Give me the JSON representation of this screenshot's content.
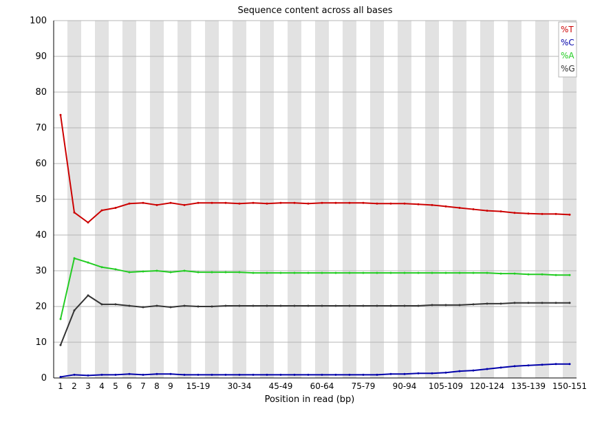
{
  "chart_data": {
    "type": "line",
    "title": "Sequence content across all bases",
    "xlabel": "Position in read (bp)",
    "ylabel": "",
    "ylim": [
      0,
      100
    ],
    "yticks": [
      0,
      10,
      20,
      30,
      40,
      50,
      60,
      70,
      80,
      90,
      100
    ],
    "categories": [
      "1",
      "2",
      "3",
      "4",
      "5",
      "6",
      "7",
      "8",
      "9",
      "10-14",
      "15-19",
      "20-24",
      "25-29",
      "30-34",
      "35-39",
      "40-44",
      "45-49",
      "50-54",
      "55-59",
      "60-64",
      "65-69",
      "70-74",
      "75-79",
      "80-84",
      "85-89",
      "90-94",
      "95-99",
      "100-104",
      "105-109",
      "110-114",
      "115-119",
      "120-124",
      "125-129",
      "130-134",
      "135-139",
      "140-144",
      "145-149",
      "150-151"
    ],
    "tick_labels": [
      "1",
      "2",
      "3",
      "4",
      "5",
      "6",
      "7",
      "8",
      "9",
      "",
      "15-19",
      "",
      "",
      "30-34",
      "",
      "",
      "45-49",
      "",
      "",
      "60-64",
      "",
      "",
      "75-79",
      "",
      "",
      "90-94",
      "",
      "",
      "105-109",
      "",
      "",
      "120-124",
      "",
      "",
      "135-139",
      "",
      "",
      "150-151"
    ],
    "grid": true,
    "legend_position": "top-right",
    "series": [
      {
        "name": "%T",
        "color": "#cc0000",
        "values": [
          73.6,
          46.3,
          43.5,
          46.9,
          47.6,
          48.8,
          49.0,
          48.4,
          49.0,
          48.4,
          49.0,
          49.0,
          49.0,
          48.8,
          49.0,
          48.8,
          49.0,
          49.0,
          48.8,
          49.0,
          49.0,
          49.0,
          49.0,
          48.8,
          48.8,
          48.8,
          48.6,
          48.4,
          48.0,
          47.6,
          47.2,
          46.8,
          46.6,
          46.2,
          46.0,
          45.9,
          45.9,
          45.7
        ]
      },
      {
        "name": "%C",
        "color": "#0000aa",
        "values": [
          0.3,
          0.9,
          0.7,
          0.9,
          0.9,
          1.1,
          0.9,
          1.1,
          1.1,
          0.9,
          0.9,
          0.9,
          0.9,
          0.9,
          0.9,
          0.9,
          0.9,
          0.9,
          0.9,
          0.9,
          0.9,
          0.9,
          0.9,
          0.9,
          1.1,
          1.1,
          1.3,
          1.3,
          1.5,
          1.9,
          2.1,
          2.5,
          2.9,
          3.3,
          3.5,
          3.7,
          3.9,
          3.9
        ]
      },
      {
        "name": "%A",
        "color": "#22cc22",
        "values": [
          16.5,
          33.5,
          32.3,
          31.0,
          30.4,
          29.6,
          29.8,
          30.0,
          29.6,
          30.0,
          29.6,
          29.6,
          29.6,
          29.6,
          29.4,
          29.4,
          29.4,
          29.4,
          29.4,
          29.4,
          29.4,
          29.4,
          29.4,
          29.4,
          29.4,
          29.4,
          29.4,
          29.4,
          29.4,
          29.4,
          29.4,
          29.4,
          29.2,
          29.2,
          29.0,
          29.0,
          28.8,
          28.8
        ]
      },
      {
        "name": "%G",
        "color": "#333333",
        "values": [
          9.2,
          18.9,
          23.1,
          20.6,
          20.6,
          20.2,
          19.8,
          20.2,
          19.8,
          20.2,
          20.0,
          20.0,
          20.2,
          20.2,
          20.2,
          20.2,
          20.2,
          20.2,
          20.2,
          20.2,
          20.2,
          20.2,
          20.2,
          20.2,
          20.2,
          20.2,
          20.2,
          20.4,
          20.4,
          20.4,
          20.6,
          20.8,
          20.8,
          21.0,
          21.0,
          21.0,
          21.0,
          21.0
        ]
      }
    ]
  }
}
